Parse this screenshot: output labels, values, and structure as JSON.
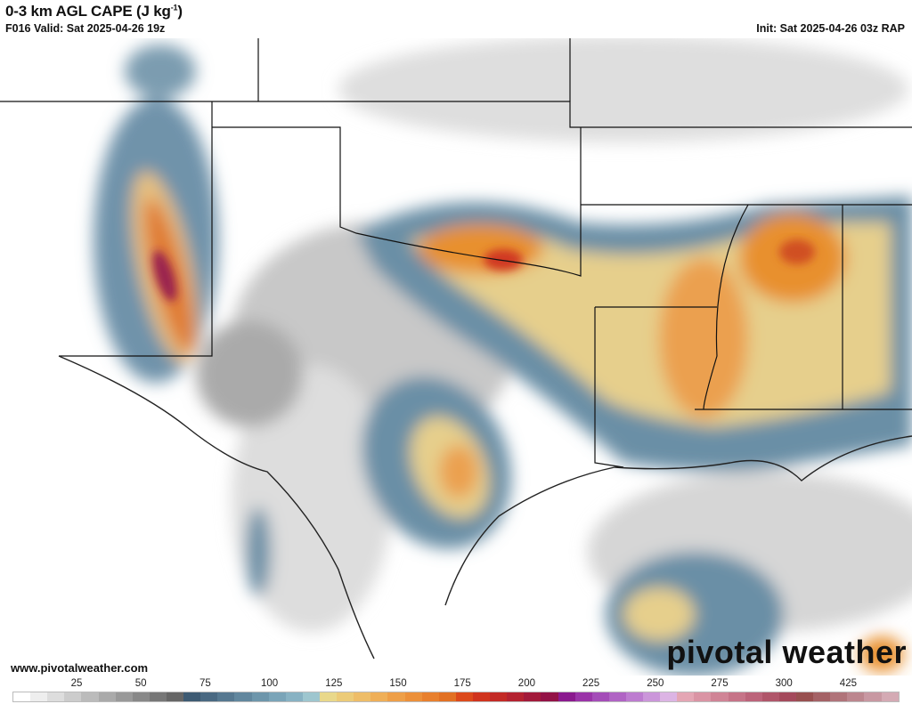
{
  "header": {
    "title": "0-3 km AGL CAPE (J kg",
    "title_sup": "-1",
    "title_close": ")",
    "valid": "F016 Valid: Sat 2025-04-26 19z",
    "init": "Init: Sat 2025-04-26 03z RAP"
  },
  "footer": {
    "credit": "www.pivotalweather.com",
    "logo": "pivotal weather"
  },
  "colorbar": {
    "ticks": [
      "25",
      "50",
      "75",
      "100",
      "125",
      "150",
      "175",
      "200",
      "225",
      "250",
      "275",
      "300",
      "425"
    ],
    "colors": [
      "#ffffff",
      "#eeeeee",
      "#dddddd",
      "#cccccc",
      "#bbbbbb",
      "#aaaaaa",
      "#999999",
      "#888888",
      "#777777",
      "#666666",
      "#3e5b73",
      "#4a6982",
      "#567890",
      "#62879e",
      "#6e96ab",
      "#7aa4b8",
      "#88b2c3",
      "#9ec6cf",
      "#e9d88a",
      "#eccb78",
      "#eebd68",
      "#efaf58",
      "#ee9f48",
      "#ec903a",
      "#e8802e",
      "#e27124",
      "#dc4a1c",
      "#d0341e",
      "#c32a26",
      "#b42230",
      "#a21a3a",
      "#931246",
      "#8a1a8e",
      "#9a34a8",
      "#a44db8",
      "#b064c4",
      "#bd7cd0",
      "#cb96da",
      "#dcb4e4",
      "#e4a6b4",
      "#da94a4",
      "#d08496",
      "#c67488",
      "#bc647a",
      "#b0566a",
      "#a44a5c",
      "#985050",
      "#a46266",
      "#b0747a",
      "#bc868e",
      "#c898a2",
      "#d4aab4"
    ]
  },
  "map_colors": {
    "low": "#9a9a9a",
    "blue": "#5f86a0",
    "yellow": "#e9d08a",
    "orange": "#e8902e",
    "red": "#d03820",
    "purple": "#8a1a5e"
  }
}
